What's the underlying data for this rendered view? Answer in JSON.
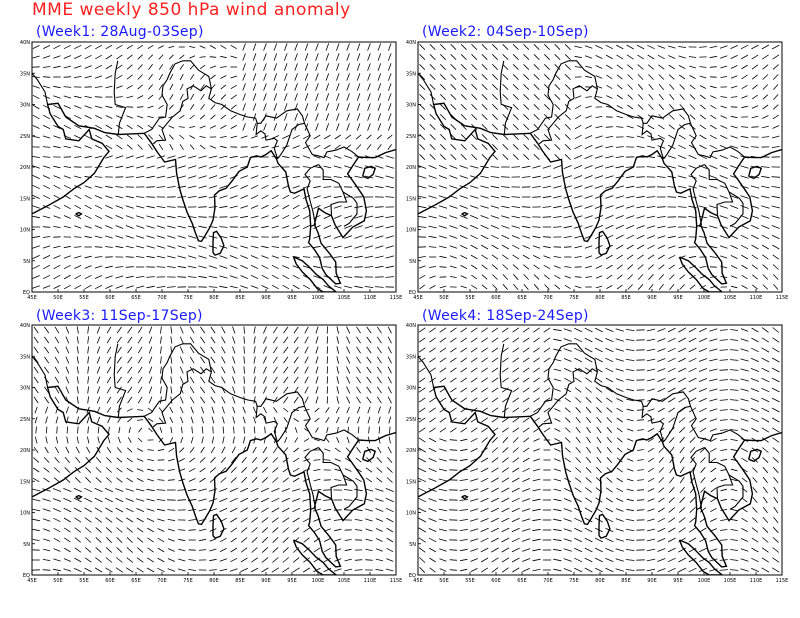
{
  "title": "MME weekly 850 hPa wind anomaly",
  "colors": {
    "title": "#ff2020",
    "panel_title": "#1a1aff",
    "lines": "#000000"
  },
  "axes": {
    "lon_ticks": [
      "45E",
      "50E",
      "55E",
      "60E",
      "65E",
      "70E",
      "75E",
      "80E",
      "85E",
      "90E",
      "95E",
      "100E",
      "105E",
      "110E",
      "115E"
    ],
    "lat_ticks": [
      "EQ",
      "5N",
      "10N",
      "15N",
      "20N",
      "25N",
      "30N",
      "35N",
      "40N"
    ]
  },
  "panels": [
    {
      "title": "(Week1: 28Aug-03Sep)"
    },
    {
      "title": "(Week2: 04Sep-10Sep)"
    },
    {
      "title": "(Week3: 11Sep-17Sep)"
    },
    {
      "title": "(Week4: 18Sep-24Sep)"
    }
  ]
}
